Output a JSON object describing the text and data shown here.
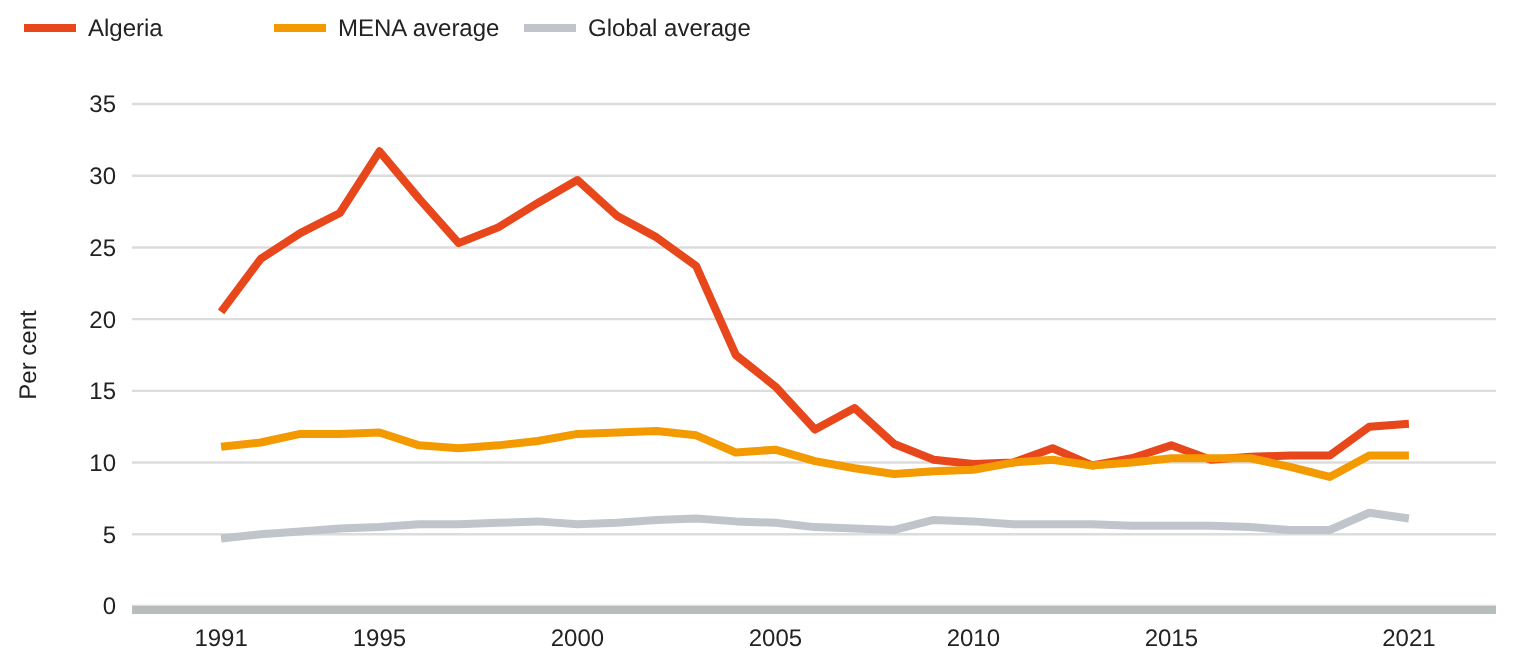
{
  "chart_data": {
    "type": "line",
    "ylabel": "Per cent",
    "x": [
      1991,
      1992,
      1993,
      1994,
      1995,
      1996,
      1997,
      1998,
      1999,
      2000,
      2001,
      2002,
      2003,
      2004,
      2005,
      2006,
      2007,
      2008,
      2009,
      2010,
      2011,
      2012,
      2013,
      2014,
      2015,
      2016,
      2017,
      2018,
      2019,
      2020,
      2021
    ],
    "series": [
      {
        "name": "Algeria",
        "color": "#e8461b",
        "values": [
          20.5,
          24.2,
          26,
          27.4,
          31.7,
          28.4,
          25.3,
          26.4,
          28.1,
          29.7,
          27.2,
          25.7,
          23.7,
          17.5,
          15.3,
          12.3,
          13.8,
          11.3,
          10.2,
          9.9,
          10,
          11,
          9.8,
          10.3,
          11.2,
          10.2,
          10.4,
          10.5,
          10.5,
          12.5,
          12.7
        ]
      },
      {
        "name": "MENA average",
        "color": "#f39a00",
        "values": [
          11.1,
          11.4,
          12,
          12,
          12.1,
          11.2,
          11,
          11.2,
          11.5,
          12,
          12.1,
          12.2,
          11.9,
          10.7,
          10.9,
          10.1,
          9.6,
          9.2,
          9.4,
          9.5,
          10,
          10.2,
          9.8,
          10,
          10.3,
          10.3,
          10.3,
          9.7,
          9,
          10.5,
          10.5
        ]
      },
      {
        "name": "Global average",
        "color": "#c0c4cb",
        "values": [
          4.7,
          5,
          5.2,
          5.4,
          5.5,
          5.7,
          5.7,
          5.8,
          5.9,
          5.7,
          5.8,
          6,
          6.1,
          5.9,
          5.8,
          5.5,
          5.4,
          5.3,
          6,
          5.9,
          5.7,
          5.7,
          5.7,
          5.6,
          5.6,
          5.6,
          5.5,
          5.3,
          5.3,
          6.5,
          6.1
        ]
      }
    ],
    "xlim": [
      1988.75,
      2023.2
    ],
    "xticks": [
      1991,
      1995,
      2000,
      2005,
      2010,
      2015,
      2021
    ],
    "ylim": [
      0,
      35
    ],
    "yticks": [
      0,
      5,
      10,
      15,
      20,
      25,
      30,
      35
    ],
    "grid": "y",
    "legend": "top left",
    "marker": "none",
    "line_style": "solid"
  }
}
